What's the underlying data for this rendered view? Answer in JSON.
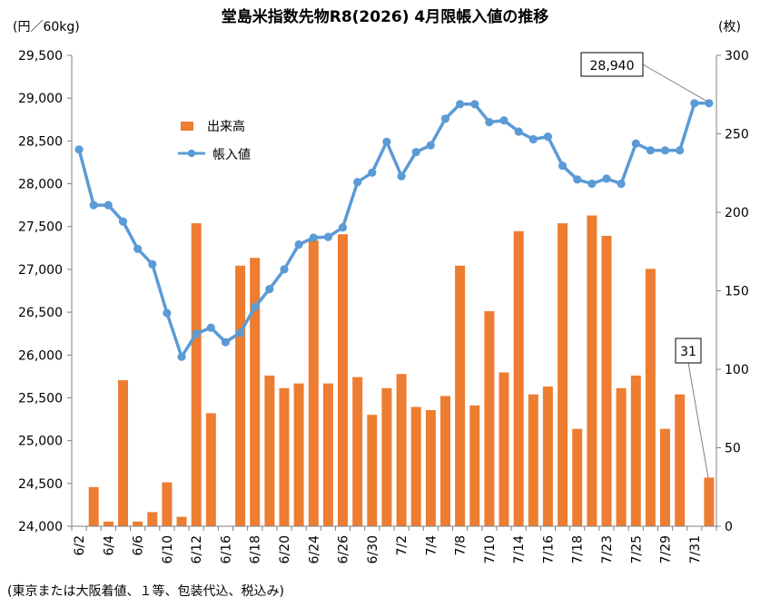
{
  "chart_data": {
    "type": "bar+line",
    "title": "堂島米指数先物R8(2026) 4月限帳入値の推移",
    "left_unit": "(円／60kg)",
    "right_unit": "(枚)",
    "footnote": "(東京または大阪着値、１等、包装代込、税込み)",
    "y_left": {
      "min": 24000,
      "max": 29500,
      "ticks": [
        "24,000",
        "24,500",
        "25,000",
        "25,500",
        "26,000",
        "26,500",
        "27,000",
        "27,500",
        "28,000",
        "28,500",
        "29,000",
        "29,500"
      ]
    },
    "y_right": {
      "min": 0,
      "max": 300,
      "ticks": [
        "0",
        "50",
        "100",
        "150",
        "200",
        "250",
        "300"
      ]
    },
    "x_tick_labels": [
      "6/2",
      "6/4",
      "6/6",
      "6/10",
      "6/12",
      "6/16",
      "6/18",
      "6/20",
      "6/24",
      "6/26",
      "6/30",
      "7/2",
      "7/4",
      "7/8",
      "7/10",
      "7/14",
      "7/16",
      "7/18",
      "7/23",
      "7/25",
      "7/29",
      "7/31"
    ],
    "grid": false,
    "legend": {
      "placement": "top-left-inside",
      "entries": [
        {
          "label": "出来高",
          "color": "#ED7D31",
          "kind": "bar"
        },
        {
          "label": "帳入値",
          "color": "#5B9BD5",
          "kind": "line"
        }
      ]
    },
    "series": [
      {
        "name": "出来高",
        "axis": "right",
        "kind": "bar",
        "color": "#ED7D31",
        "values": [
          0,
          25,
          3,
          93,
          3,
          9,
          28,
          6,
          193,
          72,
          0,
          166,
          171,
          96,
          88,
          91,
          182,
          91,
          186,
          95,
          71,
          88,
          97,
          76,
          74,
          83,
          166,
          77,
          137,
          98,
          188,
          84,
          89,
          193,
          62,
          198,
          185,
          88,
          96,
          164,
          62,
          84,
          0,
          31
        ]
      },
      {
        "name": "帳入値",
        "axis": "left",
        "kind": "line",
        "color": "#5B9BD5",
        "values": [
          28400,
          27750,
          27750,
          27560,
          27240,
          27060,
          26490,
          25980,
          26250,
          26320,
          26150,
          26260,
          26560,
          26770,
          27000,
          27290,
          27370,
          27380,
          27490,
          28020,
          28130,
          28490,
          28090,
          28370,
          28450,
          28760,
          28930,
          28930,
          28720,
          28740,
          28610,
          28520,
          28550,
          28210,
          28050,
          28000,
          28060,
          28000,
          28470,
          28390,
          28390,
          28390,
          28940,
          28940
        ]
      }
    ],
    "annotations": [
      {
        "text": "28,940",
        "series": "帳入値",
        "index": 43
      },
      {
        "text": "31",
        "series": "出来高",
        "index": 43
      }
    ]
  }
}
